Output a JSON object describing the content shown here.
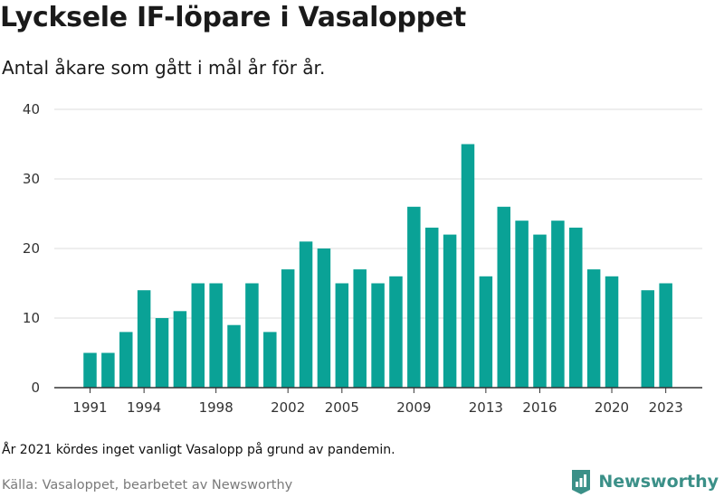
{
  "title": "Lycksele IF-löpare i Vasaloppet",
  "subtitle": "Antal åkare som gått i mål år för år.",
  "note": "År 2021 kördes inget vanligt Vasalopp på grund av pandemin.",
  "source": "Källa: Vasaloppet, bearbetet av Newsworthy",
  "brand": {
    "name": "Newsworthy",
    "icon": "newsworthy-logo-icon"
  },
  "colors": {
    "bar": "#0aa296",
    "brand": "#3b9088"
  },
  "chart_data": {
    "type": "bar",
    "title": "Lycksele IF-löpare i Vasaloppet",
    "subtitle": "Antal åkare som gått i mål år för år.",
    "xlabel": "",
    "ylabel": "",
    "ylim": [
      0,
      40
    ],
    "yticks": [
      0,
      10,
      20,
      30,
      40
    ],
    "xtick_labels": [
      "1991",
      "1994",
      "1998",
      "2002",
      "2005",
      "2009",
      "2013",
      "2016",
      "2020",
      "2023"
    ],
    "grid": true,
    "categories": [
      1991,
      1992,
      1993,
      1994,
      1995,
      1996,
      1997,
      1998,
      1999,
      2000,
      2001,
      2002,
      2003,
      2004,
      2005,
      2006,
      2007,
      2008,
      2009,
      2010,
      2011,
      2012,
      2013,
      2014,
      2015,
      2016,
      2017,
      2018,
      2019,
      2020,
      2021,
      2022,
      2023
    ],
    "values": [
      5,
      5,
      8,
      14,
      10,
      11,
      15,
      15,
      9,
      15,
      8,
      17,
      21,
      20,
      15,
      17,
      15,
      16,
      26,
      23,
      22,
      35,
      16,
      26,
      24,
      22,
      24,
      23,
      17,
      16,
      null,
      14,
      15
    ]
  }
}
